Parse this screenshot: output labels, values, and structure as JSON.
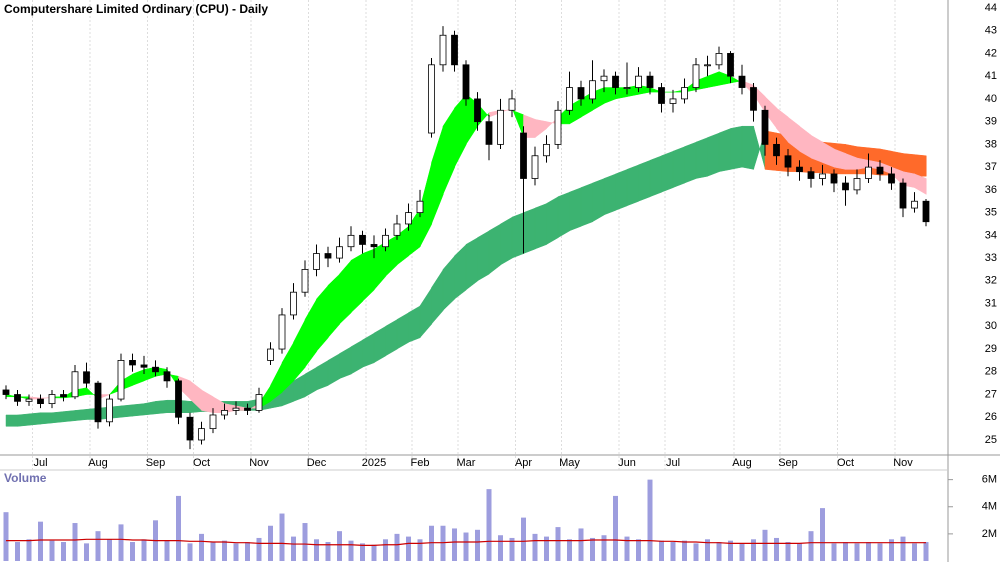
{
  "chart_data": [
    {
      "type": "candlestick",
      "title": "Computershare Limited Ordinary (CPU) - Daily",
      "categories": [
        null,
        null,
        null,
        "Jul",
        null,
        null,
        null,
        null,
        "Aug",
        null,
        null,
        null,
        null,
        "Sep",
        null,
        null,
        null,
        "Oct",
        null,
        null,
        null,
        null,
        "Nov",
        null,
        null,
        null,
        null,
        "Dec",
        null,
        null,
        null,
        null,
        "2025",
        null,
        null,
        null,
        "Feb",
        null,
        null,
        null,
        "Mar",
        null,
        null,
        null,
        null,
        "Apr",
        null,
        null,
        null,
        "May",
        null,
        null,
        null,
        null,
        "Jun",
        null,
        null,
        null,
        "Jul",
        null,
        null,
        null,
        null,
        null,
        "Aug",
        null,
        null,
        null,
        "Sep",
        null,
        null,
        null,
        null,
        "Oct",
        null,
        null,
        null,
        null,
        "Nov",
        null,
        null
      ],
      "ohlc": [
        [
          27.2,
          27.4,
          26.8,
          27.0
        ],
        [
          27.0,
          27.2,
          26.5,
          26.7
        ],
        [
          26.7,
          27.0,
          26.5,
          26.8
        ],
        [
          26.8,
          27.0,
          26.4,
          26.6
        ],
        [
          26.6,
          27.2,
          26.4,
          27.0
        ],
        [
          27.0,
          27.2,
          26.7,
          26.9
        ],
        [
          26.9,
          28.3,
          26.8,
          28.0
        ],
        [
          28.0,
          28.4,
          27.3,
          27.5
        ],
        [
          27.5,
          27.6,
          25.5,
          25.8
        ],
        [
          25.8,
          27.0,
          25.6,
          26.8
        ],
        [
          26.8,
          28.8,
          26.7,
          28.5
        ],
        [
          28.5,
          28.8,
          28.0,
          28.3
        ],
        [
          28.3,
          28.7,
          27.9,
          28.2
        ],
        [
          28.2,
          28.5,
          27.8,
          28.0
        ],
        [
          28.0,
          28.2,
          27.3,
          27.6
        ],
        [
          27.6,
          27.7,
          25.7,
          26.0
        ],
        [
          26.0,
          26.2,
          24.6,
          25.0
        ],
        [
          25.0,
          25.8,
          24.8,
          25.5
        ],
        [
          25.5,
          26.4,
          25.3,
          26.1
        ],
        [
          26.1,
          26.6,
          25.9,
          26.3
        ],
        [
          26.3,
          26.7,
          26.1,
          26.4
        ],
        [
          26.4,
          26.6,
          26.1,
          26.3
        ],
        [
          26.3,
          27.3,
          26.2,
          27.0
        ],
        [
          28.5,
          29.3,
          28.3,
          29.0
        ],
        [
          29.0,
          30.8,
          28.8,
          30.5
        ],
        [
          30.5,
          31.9,
          30.3,
          31.5
        ],
        [
          31.5,
          32.9,
          31.3,
          32.5
        ],
        [
          32.5,
          33.6,
          32.2,
          33.2
        ],
        [
          33.2,
          33.5,
          32.6,
          33.0
        ],
        [
          33.0,
          33.9,
          32.8,
          33.5
        ],
        [
          33.5,
          34.4,
          33.3,
          34.0
        ],
        [
          34.0,
          34.2,
          33.2,
          33.6
        ],
        [
          33.6,
          34.0,
          33.0,
          33.5
        ],
        [
          33.5,
          34.3,
          33.3,
          34.0
        ],
        [
          34.0,
          34.9,
          33.8,
          34.5
        ],
        [
          34.5,
          35.4,
          34.2,
          35.0
        ],
        [
          35.0,
          36.0,
          34.8,
          35.5
        ],
        [
          38.5,
          41.8,
          38.3,
          41.5
        ],
        [
          41.5,
          43.2,
          41.2,
          42.8
        ],
        [
          42.8,
          43.0,
          41.2,
          41.5
        ],
        [
          41.5,
          41.7,
          39.7,
          40.0
        ],
        [
          40.0,
          40.3,
          38.6,
          39.0
        ],
        [
          39.0,
          39.3,
          37.3,
          38.0
        ],
        [
          38.0,
          40.0,
          37.8,
          39.5
        ],
        [
          39.5,
          40.4,
          39.2,
          40.0
        ],
        [
          38.5,
          38.8,
          33.2,
          36.5
        ],
        [
          36.5,
          37.9,
          36.2,
          37.5
        ],
        [
          37.5,
          38.4,
          37.2,
          38.0
        ],
        [
          38.0,
          39.9,
          37.8,
          39.5
        ],
        [
          39.5,
          41.2,
          39.3,
          40.5
        ],
        [
          40.5,
          40.8,
          39.7,
          40.0
        ],
        [
          40.0,
          41.7,
          39.8,
          40.8
        ],
        [
          40.8,
          41.3,
          40.3,
          41.0
        ],
        [
          41.0,
          41.2,
          40.2,
          40.5
        ],
        [
          40.5,
          41.6,
          40.2,
          40.5
        ],
        [
          40.5,
          41.4,
          40.3,
          41.0
        ],
        [
          41.0,
          41.2,
          40.2,
          40.5
        ],
        [
          40.5,
          40.7,
          39.4,
          39.8
        ],
        [
          39.8,
          40.4,
          39.4,
          40.0
        ],
        [
          40.0,
          40.9,
          39.8,
          40.5
        ],
        [
          40.5,
          41.8,
          40.3,
          41.5
        ],
        [
          41.5,
          41.9,
          41.0,
          41.5
        ],
        [
          41.5,
          42.3,
          41.3,
          42.0
        ],
        [
          42.0,
          42.1,
          40.7,
          41.0
        ],
        [
          41.0,
          41.5,
          40.2,
          40.5
        ],
        [
          40.5,
          40.7,
          39.0,
          39.5
        ],
        [
          39.5,
          39.7,
          37.5,
          38.0
        ],
        [
          38.0,
          38.3,
          37.1,
          37.5
        ],
        [
          37.5,
          37.8,
          36.6,
          37.0
        ],
        [
          37.0,
          37.3,
          36.4,
          36.8
        ],
        [
          36.8,
          37.0,
          36.1,
          36.5
        ],
        [
          36.5,
          37.1,
          36.2,
          36.7
        ],
        [
          36.7,
          36.9,
          35.9,
          36.3
        ],
        [
          36.3,
          36.6,
          35.3,
          36.0
        ],
        [
          36.0,
          36.9,
          35.8,
          36.5
        ],
        [
          36.5,
          37.6,
          36.3,
          37.0
        ],
        [
          37.0,
          37.3,
          36.4,
          36.7
        ],
        [
          36.7,
          37.0,
          36.0,
          36.3
        ],
        [
          36.3,
          36.5,
          34.8,
          35.2
        ],
        [
          35.2,
          35.9,
          35.0,
          35.5
        ],
        [
          35.5,
          35.6,
          34.4,
          34.6
        ]
      ],
      "up_color": "#ffffff",
      "down_color": "#000000",
      "wick_color": "#000000",
      "ribbons": [
        {
          "fast": [
            26.1,
            26.1,
            26.15,
            26.2,
            26.2,
            26.25,
            26.3,
            26.35,
            26.4,
            26.45,
            26.5,
            26.55,
            26.6,
            26.7,
            26.75,
            26.75,
            26.7,
            26.7,
            26.7,
            26.7,
            26.7,
            26.7,
            26.8,
            27.0,
            27.3,
            27.6,
            27.9,
            28.2,
            28.5,
            28.8,
            29.1,
            29.4,
            29.7,
            30.0,
            30.3,
            30.6,
            30.9,
            31.7,
            32.5,
            33.1,
            33.6,
            33.9,
            34.2,
            34.5,
            34.8,
            35.0,
            35.2,
            35.4,
            35.7,
            35.9,
            36.1,
            36.3,
            36.5,
            36.7,
            36.9,
            37.1,
            37.3,
            37.5,
            37.7,
            37.9,
            38.1,
            38.3,
            38.5,
            38.7,
            38.8,
            38.8,
            36.9,
            36.85,
            36.8,
            36.8,
            36.75,
            36.75,
            36.7,
            36.7,
            36.7,
            36.7,
            36.65,
            36.65,
            36.65,
            36.6,
            36.6
          ],
          "slow": [
            25.6,
            25.6,
            25.65,
            25.7,
            25.75,
            25.8,
            25.85,
            25.9,
            25.9,
            25.95,
            26.0,
            26.05,
            26.1,
            26.15,
            26.2,
            26.2,
            26.2,
            26.25,
            26.25,
            26.3,
            26.3,
            26.3,
            26.3,
            26.4,
            26.5,
            26.7,
            26.9,
            27.2,
            27.4,
            27.7,
            27.9,
            28.2,
            28.4,
            28.7,
            29.0,
            29.3,
            29.5,
            30.1,
            30.7,
            31.2,
            31.6,
            32.0,
            32.3,
            32.7,
            33.0,
            33.2,
            33.4,
            33.6,
            33.9,
            34.2,
            34.4,
            34.6,
            34.9,
            35.1,
            35.3,
            35.5,
            35.7,
            35.9,
            36.1,
            36.3,
            36.5,
            36.6,
            36.8,
            36.9,
            37.0,
            36.9,
            38.6,
            38.5,
            38.4,
            38.3,
            38.2,
            38.1,
            38.05,
            38.0,
            37.9,
            37.85,
            37.8,
            37.7,
            37.6,
            37.55,
            37.5
          ],
          "up_color": "#3cb371",
          "down_color": "#ff6a2a"
        },
        {
          "fast": [
            27.0,
            26.9,
            26.8,
            26.8,
            26.9,
            26.9,
            27.2,
            27.3,
            26.8,
            27.0,
            27.6,
            27.9,
            28.1,
            28.2,
            28.1,
            27.3,
            26.8,
            26.3,
            26.2,
            26.2,
            26.3,
            26.3,
            26.6,
            27.4,
            28.4,
            29.3,
            30.3,
            31.2,
            31.8,
            32.3,
            32.9,
            33.2,
            33.4,
            33.7,
            34.0,
            34.4,
            35.2,
            37.2,
            38.8,
            39.6,
            40.2,
            39.8,
            39.2,
            39.4,
            39.6,
            38.3,
            38.3,
            38.7,
            39.2,
            39.7,
            40.0,
            40.3,
            40.5,
            40.5,
            40.5,
            40.6,
            40.5,
            40.3,
            40.3,
            40.4,
            40.8,
            41.0,
            41.2,
            41.0,
            40.7,
            40.2,
            39.4,
            38.7,
            38.1,
            37.7,
            37.4,
            37.2,
            37.0,
            36.9,
            36.9,
            37.0,
            36.9,
            36.7,
            36.2,
            36.1,
            35.8
          ],
          "slow": [
            26.9,
            26.9,
            26.9,
            26.85,
            26.85,
            26.85,
            26.9,
            27.0,
            27.0,
            27.0,
            27.2,
            27.4,
            27.6,
            27.8,
            27.9,
            27.8,
            27.6,
            27.2,
            26.9,
            26.6,
            26.5,
            26.4,
            26.4,
            26.7,
            27.1,
            27.6,
            28.2,
            28.9,
            29.5,
            30.1,
            30.6,
            31.1,
            31.6,
            32.2,
            32.7,
            33.1,
            33.5,
            34.5,
            35.8,
            37.0,
            38.0,
            38.8,
            39.4,
            39.5,
            39.5,
            39.3,
            39.1,
            39.0,
            38.9,
            38.9,
            39.2,
            39.5,
            39.8,
            40.0,
            40.1,
            40.2,
            40.3,
            40.3,
            40.3,
            40.3,
            40.4,
            40.5,
            40.6,
            40.7,
            40.8,
            40.6,
            40.1,
            39.6,
            39.2,
            38.8,
            38.4,
            38.1,
            37.8,
            37.6,
            37.4,
            37.3,
            37.2,
            37.0,
            36.8,
            36.7,
            36.5
          ],
          "up_color": "#00ff00",
          "down_color": "#ffb6c1"
        }
      ],
      "ylim": [
        24.34,
        44.35
      ],
      "yticks": [
        25,
        26,
        27,
        28,
        29,
        30,
        31,
        32,
        33,
        34,
        35,
        36,
        37,
        38,
        39,
        40,
        41,
        42,
        43,
        44
      ]
    },
    {
      "type": "bar",
      "title": "Volume",
      "values": [
        3600000,
        1400000,
        1600000,
        2900000,
        1500000,
        1400000,
        2800000,
        1300000,
        2200000,
        1600000,
        2700000,
        1400000,
        1600000,
        3000000,
        1500000,
        4800000,
        1300000,
        2000000,
        1400000,
        1500000,
        1300000,
        1400000,
        1700000,
        2600000,
        3500000,
        1800000,
        2800000,
        1600000,
        1400000,
        2200000,
        1500000,
        1300000,
        1200000,
        1600000,
        2000000,
        1800000,
        1600000,
        2600000,
        2600000,
        2400000,
        2100000,
        2300000,
        5300000,
        1900000,
        1700000,
        3200000,
        2000000,
        1800000,
        2500000,
        1600000,
        2400000,
        1700000,
        1900000,
        4800000,
        1800000,
        1600000,
        6000000,
        1500000,
        1400000,
        1500000,
        1300000,
        1600000,
        1400000,
        1500000,
        1300000,
        1600000,
        2300000,
        1700000,
        1400000,
        1300000,
        2200000,
        3900000,
        1300000,
        1400000,
        1300000,
        1400000,
        1300000,
        1600000,
        1800000,
        1300000,
        1400000
      ],
      "color": "#8c8cd8",
      "average": [
        1500000,
        1500000,
        1500000,
        1550000,
        1550000,
        1550000,
        1550000,
        1600000,
        1600000,
        1600000,
        1600000,
        1550000,
        1550000,
        1500000,
        1500000,
        1500000,
        1450000,
        1450000,
        1400000,
        1400000,
        1350000,
        1350000,
        1300000,
        1300000,
        1300000,
        1250000,
        1250000,
        1200000,
        1200000,
        1200000,
        1200000,
        1150000,
        1150000,
        1200000,
        1200000,
        1300000,
        1300000,
        1350000,
        1350000,
        1400000,
        1400000,
        1400000,
        1450000,
        1450000,
        1450000,
        1450000,
        1500000,
        1500000,
        1500000,
        1500000,
        1500000,
        1550000,
        1550000,
        1550000,
        1500000,
        1500000,
        1500000,
        1450000,
        1450000,
        1400000,
        1400000,
        1350000,
        1350000,
        1300000,
        1300000,
        1300000,
        1300000,
        1300000,
        1300000,
        1300000,
        1350000,
        1350000,
        1350000,
        1350000,
        1350000,
        1350000,
        1350000,
        1350000,
        1350000,
        1350000,
        1350000
      ],
      "average_color": "#cc0000",
      "ylim": [
        0,
        7300000
      ],
      "yticks": [
        {
          "value": 2000000,
          "label": "2M"
        },
        {
          "value": 4000000,
          "label": "4M"
        },
        {
          "value": 6000000,
          "label": "6M"
        }
      ]
    }
  ]
}
